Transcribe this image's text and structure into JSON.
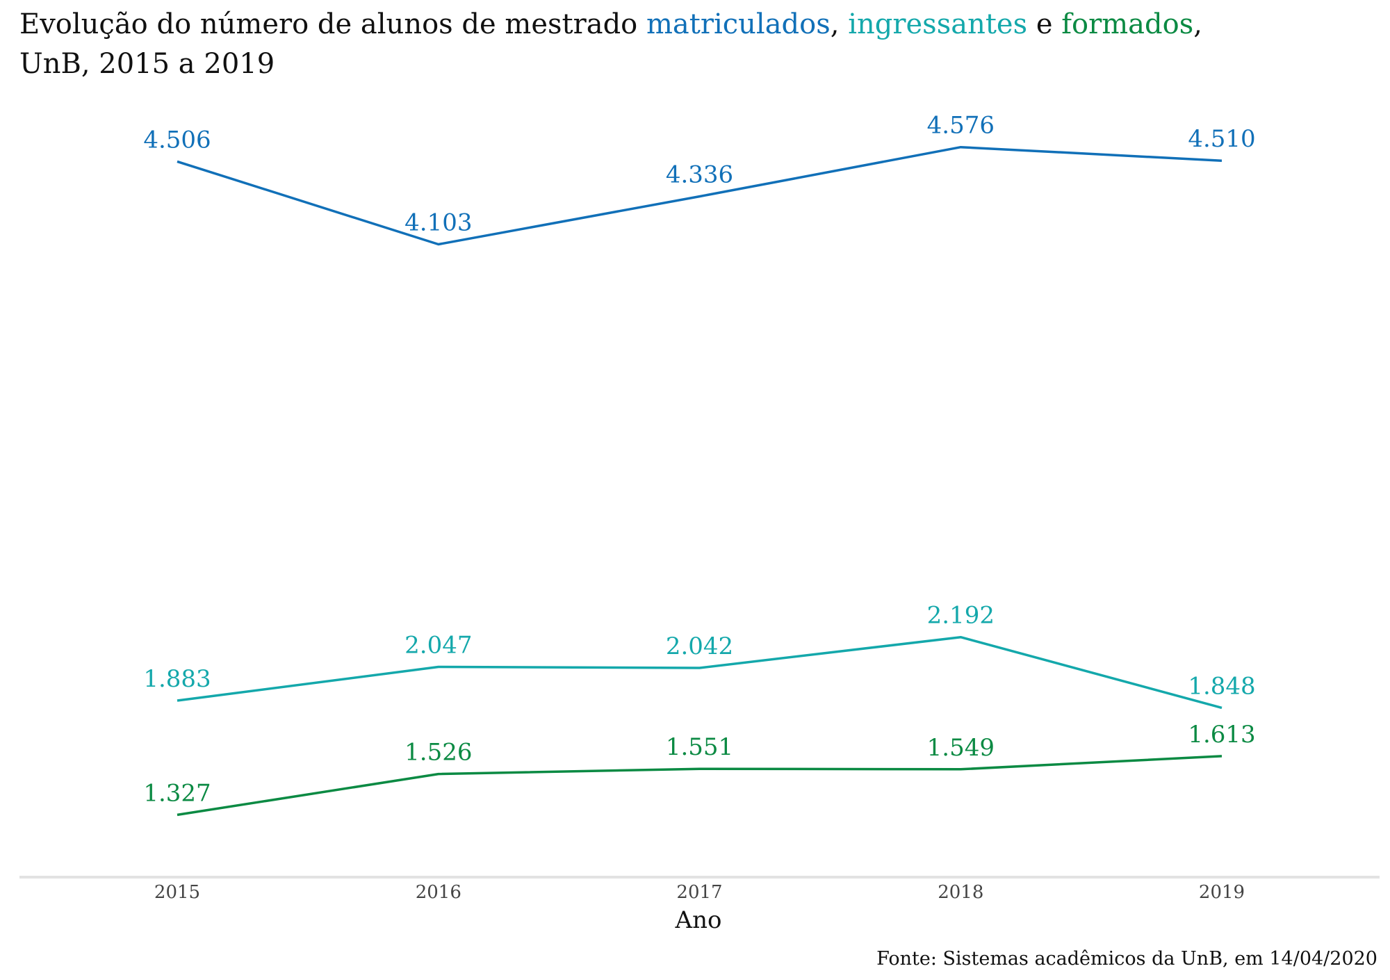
{
  "chart_data": {
    "type": "line",
    "title_parts": [
      {
        "text": "Evolução do número de alunos de mestrado ",
        "color": "#111111"
      },
      {
        "text": "matriculados",
        "color": "#1170b8"
      },
      {
        "text": ", ",
        "color": "#111111"
      },
      {
        "text": "ingressantes",
        "color": "#14a8ab"
      },
      {
        "text": " e ",
        "color": "#111111"
      },
      {
        "text": "formados",
        "color": "#0b8a43"
      },
      {
        "text": ",",
        "color": "#111111"
      }
    ],
    "title_line2": "UnB, 2015 a 2019",
    "x": [
      "2015",
      "2016",
      "2017",
      "2018",
      "2019"
    ],
    "xlabel": "Ano",
    "ylim": [
      1200,
      4700
    ],
    "grid": false,
    "caption": "Fonte: Sistemas acadêmicos da UnB, em 14/04/2020",
    "series": [
      {
        "name": "matriculados",
        "color": "#1170b8",
        "values": [
          4506,
          4103,
          4336,
          4576,
          4510
        ],
        "labels": [
          "4.506",
          "4.103",
          "4.336",
          "4.576",
          "4.510"
        ]
      },
      {
        "name": "ingressantes",
        "color": "#14a8ab",
        "values": [
          1883,
          2047,
          2042,
          2192,
          1848
        ],
        "labels": [
          "1.883",
          "2.047",
          "2.042",
          "2.192",
          "1.848"
        ]
      },
      {
        "name": "formados",
        "color": "#0b8a43",
        "values": [
          1327,
          1526,
          1551,
          1549,
          1613
        ],
        "labels": [
          "1.327",
          "1.526",
          "1.551",
          "1.549",
          "1.613"
        ]
      }
    ]
  }
}
